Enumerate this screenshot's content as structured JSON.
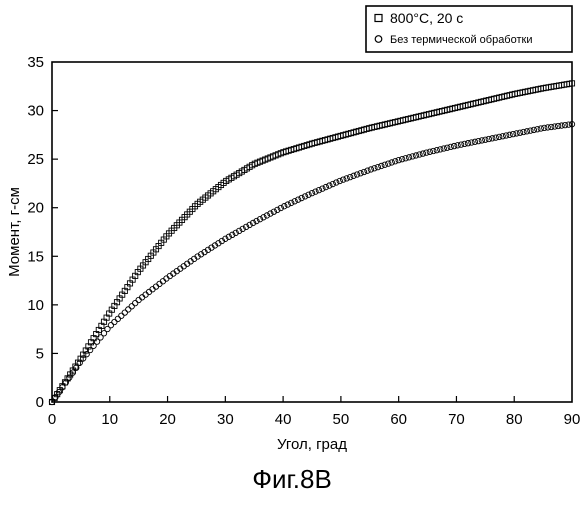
{
  "chart_data": {
    "type": "scatter",
    "xlabel": "Угол, град",
    "ylabel": "Момент, г-см",
    "xlim": [
      0,
      90
    ],
    "ylim": [
      0,
      35
    ],
    "xticks": [
      0,
      10,
      20,
      30,
      40,
      50,
      60,
      70,
      80,
      90
    ],
    "yticks": [
      0,
      5,
      10,
      15,
      20,
      25,
      30,
      35
    ],
    "grid": false,
    "legend_position": "top-right, above plot",
    "caption": "Фиг.8B",
    "series": [
      {
        "name": "800°C, 20 с",
        "marker": "square",
        "x": [
          0,
          5,
          10,
          15,
          20,
          25,
          30,
          35,
          40,
          45,
          50,
          55,
          60,
          65,
          70,
          75,
          80,
          85,
          90
        ],
        "y": [
          0,
          4.5,
          9.2,
          13.5,
          17.2,
          20.3,
          22.7,
          24.5,
          25.7,
          26.6,
          27.4,
          28.2,
          28.9,
          29.6,
          30.3,
          31.0,
          31.7,
          32.3,
          32.8
        ]
      },
      {
        "name": "Без термической обработки",
        "marker": "circle",
        "x": [
          0,
          5,
          10,
          15,
          20,
          25,
          30,
          35,
          40,
          45,
          50,
          55,
          60,
          65,
          70,
          75,
          80,
          85,
          90
        ],
        "y": [
          0,
          4.2,
          7.8,
          10.5,
          12.8,
          14.9,
          16.8,
          18.5,
          20.1,
          21.5,
          22.8,
          23.9,
          24.9,
          25.7,
          26.4,
          27.0,
          27.6,
          28.2,
          28.6
        ]
      }
    ]
  }
}
